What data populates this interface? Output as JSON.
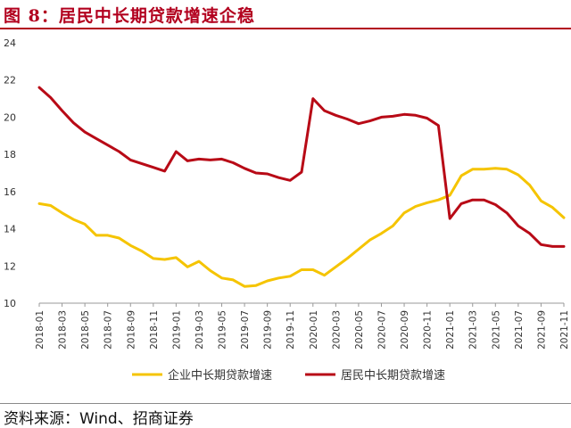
{
  "figure": {
    "title": "图 8：居民中长期贷款增速企稳",
    "source": "资料来源：Wind、招商证券"
  },
  "colors": {
    "accent": "#b2001e",
    "series_enterprise": "#f5c400",
    "series_household": "#b80a16",
    "axis": "#999999",
    "tick_text": "#333333"
  },
  "chart_data": {
    "type": "line",
    "title": "",
    "xlabel": "",
    "ylabel": "",
    "ylim": [
      10,
      24
    ],
    "yticks": [
      10,
      12,
      14,
      16,
      18,
      20,
      22,
      24
    ],
    "grid": false,
    "legend_position": "bottom",
    "x": [
      "2018-01",
      "2018-02",
      "2018-03",
      "2018-04",
      "2018-05",
      "2018-06",
      "2018-07",
      "2018-08",
      "2018-09",
      "2018-10",
      "2018-11",
      "2018-12",
      "2019-01",
      "2019-02",
      "2019-03",
      "2019-04",
      "2019-05",
      "2019-06",
      "2019-07",
      "2019-08",
      "2019-09",
      "2019-10",
      "2019-11",
      "2019-12",
      "2020-01",
      "2020-02",
      "2020-03",
      "2020-04",
      "2020-05",
      "2020-06",
      "2020-07",
      "2020-08",
      "2020-09",
      "2020-10",
      "2020-11",
      "2020-12",
      "2021-01",
      "2021-02",
      "2021-03",
      "2021-04",
      "2021-05",
      "2021-06",
      "2021-07",
      "2021-08",
      "2021-09",
      "2021-10",
      "2021-11"
    ],
    "xtick_labels": [
      "2018-01",
      "2018-03",
      "2018-05",
      "2018-07",
      "2018-09",
      "2018-11",
      "2019-01",
      "2019-03",
      "2019-05",
      "2019-07",
      "2019-09",
      "2019-11",
      "2020-01",
      "2020-03",
      "2020-05",
      "2020-07",
      "2020-09",
      "2020-11",
      "2021-01",
      "2021-03",
      "2021-05",
      "2021-07",
      "2021-09",
      "2021-11"
    ],
    "series": [
      {
        "name": "企业中长期贷款增速",
        "values": [
          15.35,
          15.25,
          14.85,
          14.5,
          14.25,
          13.65,
          13.65,
          13.5,
          13.1,
          12.8,
          12.4,
          12.35,
          12.45,
          11.95,
          12.25,
          11.75,
          11.35,
          11.25,
          10.9,
          10.95,
          11.2,
          11.35,
          11.45,
          11.8,
          11.8,
          11.5,
          11.95,
          12.4,
          12.9,
          13.4,
          13.75,
          14.15,
          14.85,
          15.2,
          15.4,
          15.55,
          15.8,
          16.85,
          17.2,
          17.2,
          17.25,
          17.2,
          16.9,
          16.35,
          15.5,
          15.15,
          14.6
        ]
      },
      {
        "name": "居民中长期贷款增速",
        "values": [
          21.6,
          21.05,
          20.35,
          19.7,
          19.2,
          18.85,
          18.5,
          18.15,
          17.7,
          17.5,
          17.3,
          17.1,
          18.15,
          17.65,
          17.75,
          17.7,
          17.75,
          17.55,
          17.25,
          17.0,
          16.95,
          16.75,
          16.6,
          17.05,
          21.0,
          20.35,
          20.1,
          19.9,
          19.65,
          19.8,
          20.0,
          20.05,
          20.15,
          20.1,
          19.95,
          19.55,
          14.55,
          15.35,
          15.55,
          15.55,
          15.3,
          14.85,
          14.15,
          13.75,
          13.15,
          13.05,
          13.05
        ]
      }
    ]
  }
}
